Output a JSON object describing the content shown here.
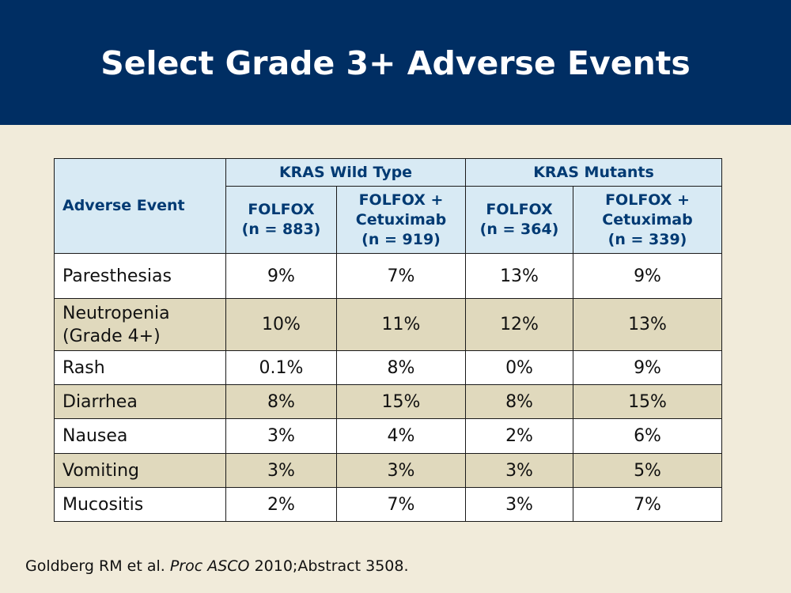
{
  "slide": {
    "title": "Select Grade 3+ Adverse Events"
  },
  "table": {
    "corner_header": "Adverse Event",
    "groups": [
      {
        "label": "KRAS Wild Type"
      },
      {
        "label": "KRAS Mutants"
      }
    ],
    "columns": [
      {
        "line1": "FOLFOX",
        "line2": "(n = 883)",
        "line3": ""
      },
      {
        "line1": "FOLFOX +",
        "line2": "Cetuximab",
        "line3": "(n = 919)"
      },
      {
        "line1": "FOLFOX",
        "line2": "(n = 364)",
        "line3": ""
      },
      {
        "line1": "FOLFOX +",
        "line2": "Cetuximab",
        "line3": "(n = 339)"
      }
    ],
    "rows": [
      {
        "event": "Paresthesias",
        "event_line2": "",
        "values": [
          "9%",
          "7%",
          "13%",
          "9%"
        ]
      },
      {
        "event": "Neutropenia",
        "event_line2": "(Grade 4+)",
        "values": [
          "10%",
          "11%",
          "12%",
          "13%"
        ]
      },
      {
        "event": "Rash",
        "event_line2": "",
        "values": [
          "0.1%",
          "8%",
          "0%",
          "9%"
        ]
      },
      {
        "event": "Diarrhea",
        "event_line2": "",
        "values": [
          "8%",
          "15%",
          "8%",
          "15%"
        ]
      },
      {
        "event": "Nausea",
        "event_line2": "",
        "values": [
          "3%",
          "4%",
          "2%",
          "6%"
        ]
      },
      {
        "event": "Vomiting",
        "event_line2": "",
        "values": [
          "3%",
          "3%",
          "3%",
          "5%"
        ]
      },
      {
        "event": "Mucositis",
        "event_line2": "",
        "values": [
          "2%",
          "7%",
          "3%",
          "7%"
        ]
      }
    ]
  },
  "citation": {
    "authors": "Goldberg RM et al.",
    "journal": "Proc ASCO",
    "details": "2010;Abstract 3508."
  },
  "colors": {
    "header_band": "#002e63",
    "background": "#f1ebda",
    "table_header_fill": "#d8eaf4",
    "table_header_text": "#003a73",
    "row_shade": "#e0d9bd"
  }
}
